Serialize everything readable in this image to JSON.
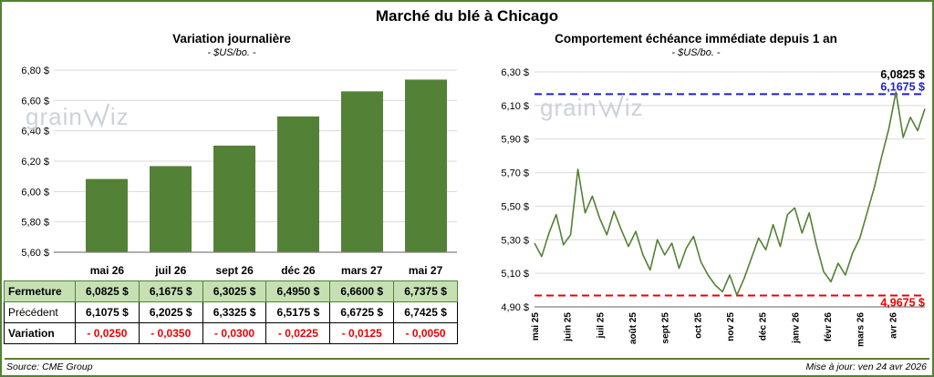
{
  "page": {
    "title": "Marché du blé à Chicago",
    "source": "Source: CME Group",
    "updated": "Mise à jour: ven 24 avr 2026",
    "watermark": {
      "pre": "grain",
      "post": "iz"
    }
  },
  "colors": {
    "green": "#538135",
    "light_green": "#c6e0b4",
    "blue": "#2020cc",
    "red": "#ee0000",
    "annotation_black": "#000000",
    "grid": "#d9d9d9",
    "axis": "#7f7f7f",
    "watermark": "#ccd2da",
    "border": "#538135"
  },
  "chart_data": [
    {
      "type": "bar",
      "title": "Variation  journalière",
      "subtitle": "- $US/bo. -",
      "categories": [
        "mai 26",
        "juil 26",
        "sept 26",
        "déc 26",
        "mars 27",
        "mai 27"
      ],
      "values": [
        6.0825,
        6.1675,
        6.3025,
        6.495,
        6.66,
        6.7375
      ],
      "ylim": [
        5.6,
        6.8
      ],
      "yticks": [
        5.6,
        5.8,
        6.0,
        6.2,
        6.4,
        6.6,
        6.8
      ],
      "ytick_labels": [
        "5,60 $",
        "5,80 $",
        "6,00 $",
        "6,20 $",
        "6,40 $",
        "6,60 $",
        "6,80 $"
      ],
      "grid": true,
      "legend": "none"
    },
    {
      "type": "line",
      "title": "Comportement échéance immédiate depuis 1 an",
      "subtitle": "- $US/bo. -",
      "x_labels": [
        "mai 25",
        "juin 25",
        "juil 25",
        "août 25",
        "sept 25",
        "oct 25",
        "nov 25",
        "déc 25",
        "janv 26",
        "févr 26",
        "mars 26",
        "avr 26"
      ],
      "ylim": [
        4.9,
        6.3
      ],
      "yticks": [
        4.9,
        5.1,
        5.3,
        5.5,
        5.7,
        5.9,
        6.1,
        6.3
      ],
      "ytick_labels": [
        "4,90 $",
        "5,10 $",
        "5,30 $",
        "5,50 $",
        "5,70 $",
        "5,90 $",
        "6,10 $",
        "6,30 $"
      ],
      "values": [
        5.28,
        5.2,
        5.34,
        5.45,
        5.27,
        5.33,
        5.72,
        5.46,
        5.56,
        5.43,
        5.33,
        5.47,
        5.36,
        5.26,
        5.35,
        5.21,
        5.12,
        5.3,
        5.21,
        5.28,
        5.13,
        5.25,
        5.32,
        5.17,
        5.09,
        5.03,
        4.99,
        5.09,
        4.97,
        5.07,
        5.19,
        5.31,
        5.24,
        5.39,
        5.26,
        5.45,
        5.49,
        5.34,
        5.46,
        5.27,
        5.11,
        5.05,
        5.16,
        5.09,
        5.22,
        5.31,
        5.46,
        5.61,
        5.79,
        5.96,
        6.18,
        5.91,
        6.03,
        5.95,
        6.08
      ],
      "reference_lines": [
        {
          "role": "high",
          "value": 6.1675,
          "color": "blue",
          "label": "6,1675 $"
        },
        {
          "role": "low",
          "value": 4.9675,
          "color": "red",
          "label": "4,9675 $"
        }
      ],
      "annotations": [
        {
          "role": "last-price",
          "text": "6,0825 $",
          "color": "black"
        },
        {
          "role": "high",
          "text": "6,1675 $",
          "color": "blue"
        },
        {
          "role": "low",
          "text": "4,9675 $",
          "color": "red"
        }
      ],
      "grid": true,
      "legend": "none"
    }
  ],
  "table": {
    "rows": [
      {
        "id": "fermeture",
        "label": "Fermeture",
        "cells": [
          "6,0825 $",
          "6,1675 $",
          "6,3025 $",
          "6,4950 $",
          "6,6600 $",
          "6,7375 $"
        ]
      },
      {
        "id": "precedent",
        "label": "Précédent",
        "cells": [
          "6,1075 $",
          "6,2025 $",
          "6,3325 $",
          "6,5175 $",
          "6,6725 $",
          "6,7425 $"
        ]
      },
      {
        "id": "variation",
        "label": "Variation",
        "cells": [
          "- 0,0250",
          "- 0,0350",
          "- 0,0300",
          "- 0,0225",
          "- 0,0125",
          "- 0,0050"
        ]
      }
    ]
  }
}
